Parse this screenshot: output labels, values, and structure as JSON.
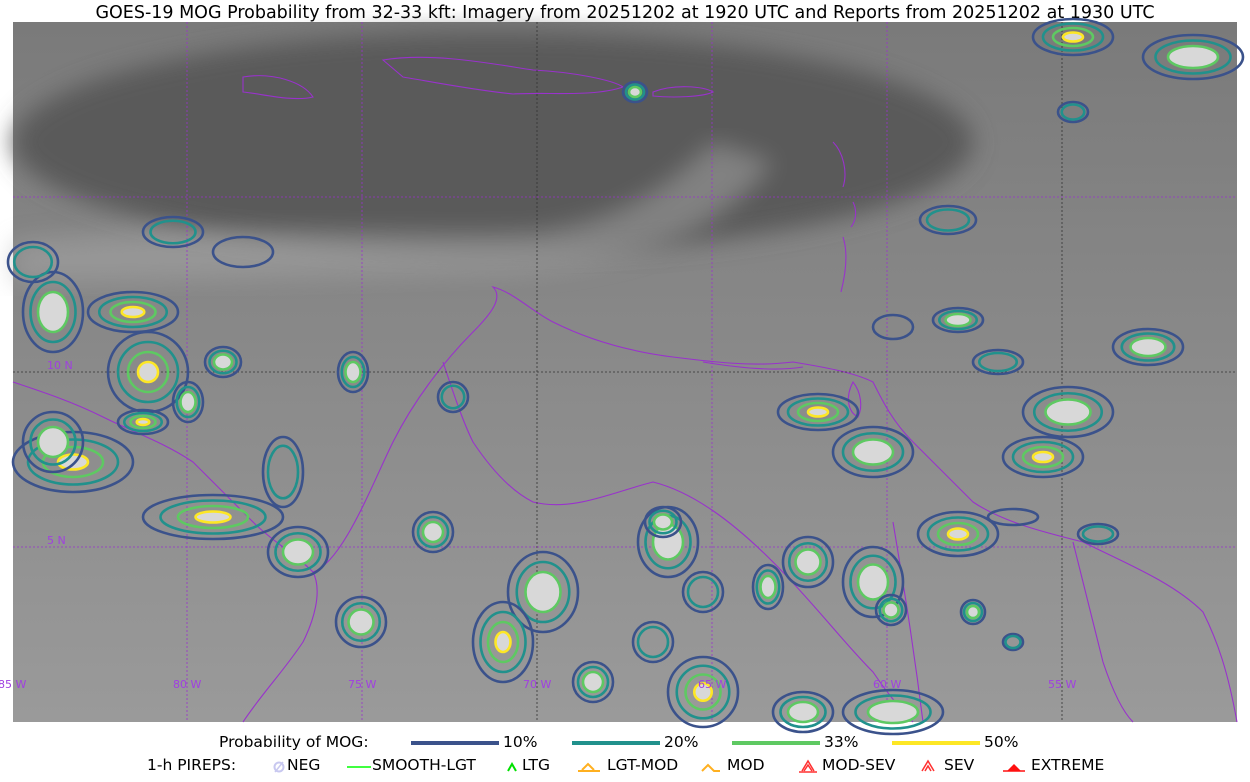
{
  "title": "GOES-19 MOG Probability from 32-33 kft: Imagery from 20251202 at 1920 UTC and Reports from 20251202 at 1930 UTC",
  "map": {
    "longitude_labels": [
      "85 W",
      "80 W",
      "75 W",
      "70 W",
      "65 W",
      "60 W",
      "55 W"
    ],
    "latitude_labels": [
      "10 N",
      "5 N"
    ],
    "colors": {
      "coastline": "#9932cc",
      "gridline": "#9932cc"
    }
  },
  "legend": {
    "probability_label": "Probability of MOG:",
    "levels": [
      {
        "label": "10%",
        "color": "#3b528b"
      },
      {
        "label": "20%",
        "color": "#21918c"
      },
      {
        "label": "33%",
        "color": "#5ec962"
      },
      {
        "label": "50%",
        "color": "#fde725"
      }
    ],
    "pireps_label": "1-h PIREPS:",
    "pireps": [
      {
        "label": "NEG",
        "icon": "neg-circle-icon",
        "color": "#c8c8f0"
      },
      {
        "label": "SMOOTH-LGT",
        "icon": "line-icon",
        "color": "#00ff00"
      },
      {
        "label": "LTG",
        "icon": "caret-icon",
        "color": "#00e000"
      },
      {
        "label": "LGT-MOD",
        "icon": "caret-bar-icon",
        "color": "#ffb020"
      },
      {
        "label": "MOD",
        "icon": "caret-icon",
        "color": "#ffb020"
      },
      {
        "label": "MOD-SEV",
        "icon": "double-caret-bar-icon",
        "color": "#ff3030"
      },
      {
        "label": "SEV",
        "icon": "double-caret-icon",
        "color": "#ff3030"
      },
      {
        "label": "EXTREME",
        "icon": "filled-triangle-icon",
        "color": "#ff1010"
      }
    ]
  }
}
